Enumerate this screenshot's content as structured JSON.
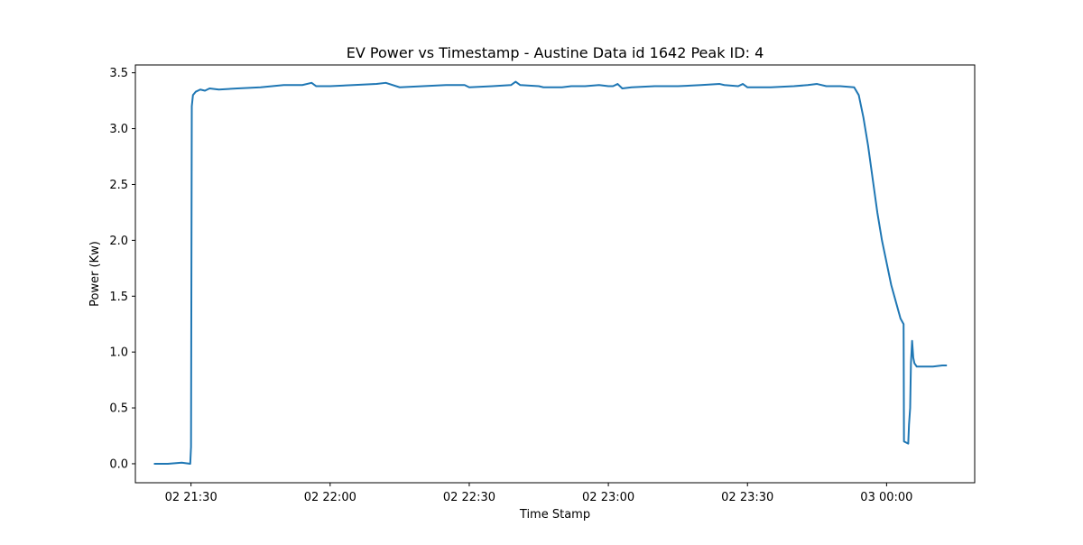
{
  "chart_data": {
    "type": "line",
    "title": "EV Power vs Timestamp - Austine Data id 1642 Peak ID: 4",
    "xlabel": "Time Stamp",
    "ylabel": "Power (Kw)",
    "xlim": [
      "02 21:18",
      "03 00:19"
    ],
    "ylim": [
      -0.17,
      3.57
    ],
    "xticks": [
      {
        "t": "02 21:30",
        "label": "02 21:30"
      },
      {
        "t": "02 22:00",
        "label": "02 22:00"
      },
      {
        "t": "02 22:30",
        "label": "02 22:30"
      },
      {
        "t": "02 23:00",
        "label": "02 23:00"
      },
      {
        "t": "02 23:30",
        "label": "02 23:30"
      },
      {
        "t": "03 00:00",
        "label": "03 00:00"
      }
    ],
    "yticks": [
      0.0,
      0.5,
      1.0,
      1.5,
      2.0,
      2.5,
      3.0,
      3.5
    ],
    "grid": false,
    "series": [
      {
        "color": "#1f77b4",
        "points": [
          [
            "02 21:22",
            0.0
          ],
          [
            "02 21:25",
            0.0
          ],
          [
            "02 21:28",
            0.01
          ],
          [
            "02 21:29:50",
            0.0
          ],
          [
            "02 21:30:00",
            0.15
          ],
          [
            "02 21:30:10",
            3.2
          ],
          [
            "02 21:30:25",
            3.3
          ],
          [
            "02 21:31",
            3.33
          ],
          [
            "02 21:32",
            3.35
          ],
          [
            "02 21:33",
            3.34
          ],
          [
            "02 21:34",
            3.36
          ],
          [
            "02 21:36",
            3.35
          ],
          [
            "02 21:40",
            3.36
          ],
          [
            "02 21:45",
            3.37
          ],
          [
            "02 21:50",
            3.39
          ],
          [
            "02 21:54",
            3.39
          ],
          [
            "02 21:56",
            3.41
          ],
          [
            "02 21:57",
            3.38
          ],
          [
            "02 22:00",
            3.38
          ],
          [
            "02 22:05",
            3.39
          ],
          [
            "02 22:10",
            3.4
          ],
          [
            "02 22:12",
            3.41
          ],
          [
            "02 22:15",
            3.37
          ],
          [
            "02 22:20",
            3.38
          ],
          [
            "02 22:25",
            3.39
          ],
          [
            "02 22:29",
            3.39
          ],
          [
            "02 22:30",
            3.37
          ],
          [
            "02 22:35",
            3.38
          ],
          [
            "02 22:39",
            3.39
          ],
          [
            "02 22:40",
            3.42
          ],
          [
            "02 22:41",
            3.39
          ],
          [
            "02 22:45",
            3.38
          ],
          [
            "02 22:46",
            3.37
          ],
          [
            "02 22:50",
            3.37
          ],
          [
            "02 22:52",
            3.38
          ],
          [
            "02 22:55",
            3.38
          ],
          [
            "02 22:58",
            3.39
          ],
          [
            "02 23:00",
            3.38
          ],
          [
            "02 23:01",
            3.38
          ],
          [
            "02 23:02",
            3.4
          ],
          [
            "02 23:03",
            3.36
          ],
          [
            "02 23:05",
            3.37
          ],
          [
            "02 23:10",
            3.38
          ],
          [
            "02 23:15",
            3.38
          ],
          [
            "02 23:20",
            3.39
          ],
          [
            "02 23:24",
            3.4
          ],
          [
            "02 23:25",
            3.39
          ],
          [
            "02 23:28",
            3.38
          ],
          [
            "02 23:29",
            3.4
          ],
          [
            "02 23:30",
            3.37
          ],
          [
            "02 23:35",
            3.37
          ],
          [
            "02 23:40",
            3.38
          ],
          [
            "02 23:43",
            3.39
          ],
          [
            "02 23:45",
            3.4
          ],
          [
            "02 23:47",
            3.38
          ],
          [
            "02 23:50",
            3.38
          ],
          [
            "02 23:53",
            3.37
          ],
          [
            "02 23:54",
            3.3
          ],
          [
            "02 23:55",
            3.1
          ],
          [
            "02 23:56",
            2.85
          ],
          [
            "02 23:57",
            2.55
          ],
          [
            "02 23:58",
            2.25
          ],
          [
            "02 23:59",
            2.0
          ],
          [
            "03 00:00",
            1.8
          ],
          [
            "03 00:01",
            1.6
          ],
          [
            "03 00:02",
            1.45
          ],
          [
            "03 00:03",
            1.3
          ],
          [
            "03 00:03:40",
            1.25
          ],
          [
            "03 00:03:45",
            0.2
          ],
          [
            "03 00:04:40",
            0.18
          ],
          [
            "03 00:04:50",
            0.35
          ],
          [
            "03 00:05:05",
            0.5
          ],
          [
            "03 00:05:15",
            0.9
          ],
          [
            "03 00:05:30",
            1.1
          ],
          [
            "03 00:05:45",
            0.95
          ],
          [
            "03 00:06",
            0.9
          ],
          [
            "03 00:06:30",
            0.87
          ],
          [
            "03 00:08",
            0.87
          ],
          [
            "03 00:10",
            0.87
          ],
          [
            "03 00:12",
            0.88
          ],
          [
            "03 00:13",
            0.88
          ]
        ]
      }
    ]
  }
}
